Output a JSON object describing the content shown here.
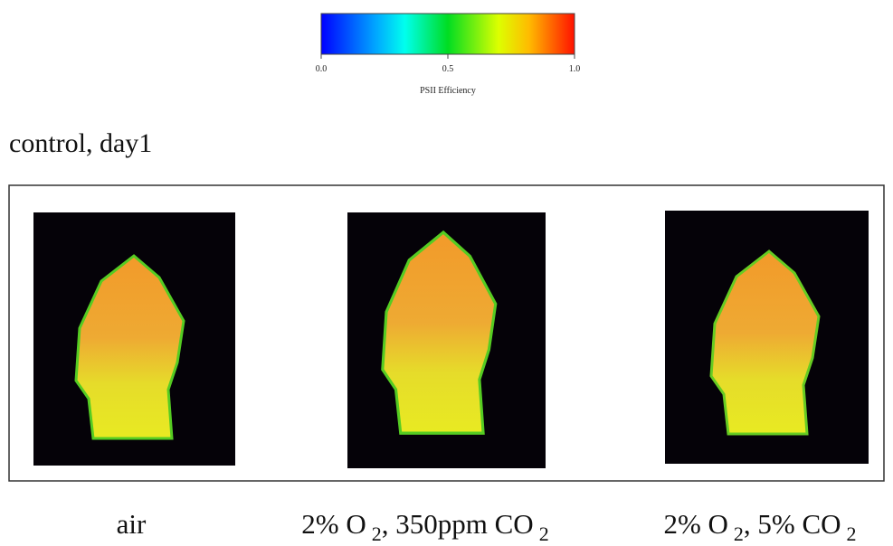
{
  "colorbar": {
    "lim": [
      0,
      1
    ],
    "ticks": [
      {
        "value": 0,
        "label": "0.0"
      },
      {
        "value": 0.5,
        "label": "0.5"
      },
      {
        "value": 1,
        "label": "1.0"
      }
    ],
    "label": "PSII Efficiency"
  },
  "heading": "control, day1",
  "panels": [
    {
      "label_parts": [
        "air"
      ]
    },
    {
      "label_parts": [
        "2% O",
        "2",
        ", 350ppm CO",
        "2"
      ]
    },
    {
      "label_parts": [
        "2% O",
        "2",
        ", 5% CO",
        "2"
      ]
    }
  ]
}
